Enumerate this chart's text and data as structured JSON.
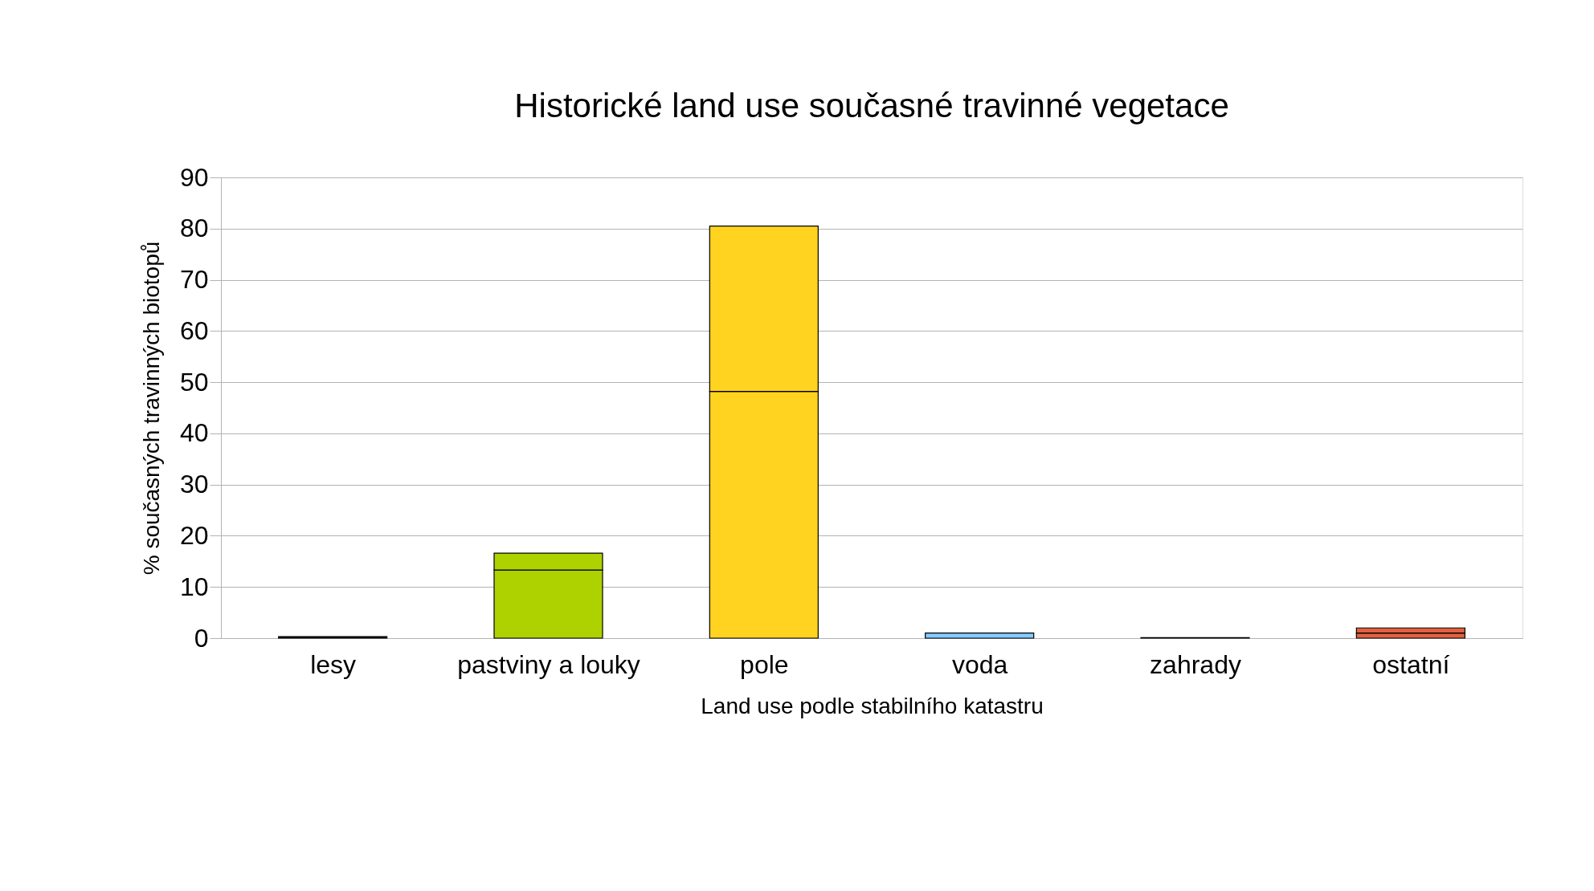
{
  "chart_data": {
    "type": "bar",
    "title": "Historické land use současné travinné vegetace",
    "xlabel": "Land use podle stabilního katastru",
    "ylabel": "% současných travinných biotopů",
    "categories": [
      "lesy",
      "pastviny a louky",
      "pole",
      "voda",
      "zahrady",
      "ostatní"
    ],
    "stacked": true,
    "series": [
      {
        "colors": [
          "#000000",
          "#aed100",
          "#ffd320",
          "#83caff",
          "#314004",
          "#e16140"
        ],
        "values": [
          0.3,
          13.3,
          48.2,
          1.0,
          0.1,
          1.0
        ]
      },
      {
        "colors": [
          "#000000",
          "#aed100",
          "#ffd320",
          "#83caff",
          "#314004",
          "#e16140"
        ],
        "values": [
          null,
          3.3,
          32.3,
          null,
          null,
          1.0
        ]
      }
    ],
    "ylim": [
      0,
      90
    ],
    "yticks": [
      0,
      10,
      20,
      30,
      40,
      50,
      60,
      70,
      80,
      90
    ],
    "grid": "y"
  }
}
